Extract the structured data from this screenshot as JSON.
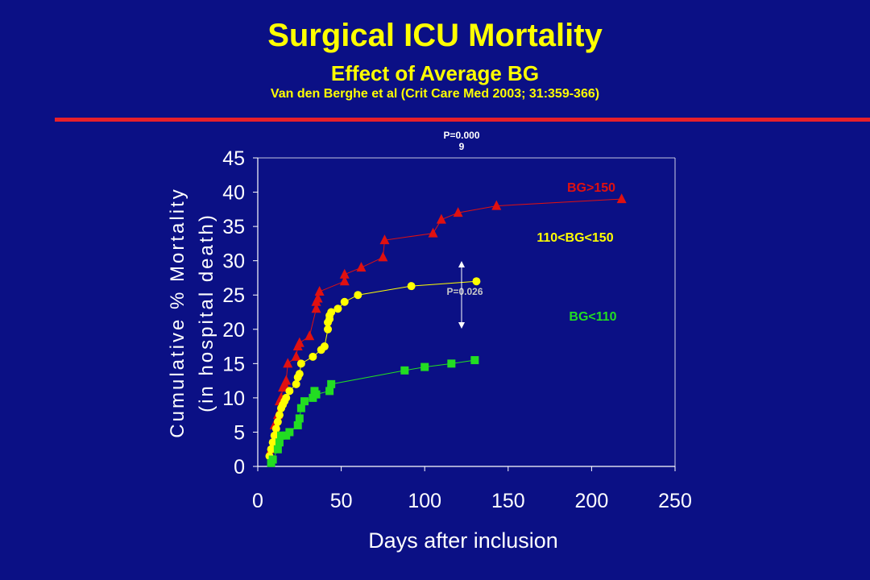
{
  "title": "Surgical ICU Mortality",
  "subtitle": "Effect of Average BG",
  "citation": "Van den Berghe et al (Crit Care Med 2003; 31:359-366)",
  "colors": {
    "background": "#0b1085",
    "title": "#ffff00",
    "rule": "#e8202a",
    "bg_high": "#e01010",
    "bg_mid": "#ffff00",
    "bg_low": "#22dd22"
  },
  "chart_data": {
    "type": "line",
    "xlabel": "Days after inclusion",
    "ylabel_line1": "Cumulative % Mortality",
    "ylabel_line2": "(in hospital death)",
    "xlim": [
      0,
      250
    ],
    "ylim": [
      0,
      45
    ],
    "xticks": [
      0,
      50,
      100,
      150,
      200,
      250
    ],
    "yticks": [
      0,
      5,
      10,
      15,
      20,
      25,
      30,
      35,
      40,
      45
    ],
    "grid": false,
    "annotations": {
      "p_top_line1": "P=0.000",
      "p_top_line2": "9",
      "p_mid": "P=0.026"
    },
    "series": [
      {
        "name": "BG>150",
        "marker": "triangle",
        "x": [
          8,
          9,
          10,
          11,
          12,
          13,
          14,
          15,
          16,
          17,
          18,
          23,
          24,
          25,
          31,
          35,
          35,
          36,
          37,
          52,
          52,
          62,
          75,
          76,
          105,
          110,
          120,
          143,
          218
        ],
        "y": [
          2.5,
          3,
          6,
          5,
          7.5,
          9.5,
          10,
          11.5,
          12,
          12.5,
          15,
          16,
          17.5,
          18,
          19,
          23,
          24,
          24.5,
          25.5,
          27,
          28,
          29,
          30.5,
          33,
          34,
          36,
          37,
          38,
          39
        ]
      },
      {
        "name": "110<BG<150",
        "marker": "circle",
        "x": [
          7,
          8,
          9,
          10,
          11,
          12,
          13,
          14,
          15,
          16,
          17,
          19,
          23,
          24,
          25,
          26,
          33,
          38,
          40,
          42,
          42,
          43,
          43,
          44,
          48,
          52,
          60,
          92,
          131
        ],
        "y": [
          1.5,
          2.5,
          3.5,
          4.5,
          5.5,
          6.5,
          7.5,
          8.5,
          9,
          9.5,
          10,
          11,
          12,
          13,
          13.5,
          15,
          16,
          17,
          17.5,
          20,
          21,
          21.5,
          22,
          22.5,
          23,
          24,
          25,
          26.3,
          27
        ]
      },
      {
        "name": "BG<110",
        "marker": "square",
        "x": [
          8,
          9,
          12,
          13,
          14,
          17,
          19,
          24,
          25,
          26,
          28,
          33,
          34,
          35,
          43,
          44,
          88,
          100,
          116,
          130
        ],
        "y": [
          0.5,
          1,
          2.5,
          3.5,
          4.5,
          4.5,
          5,
          6,
          7,
          8.5,
          9.5,
          10,
          11,
          10.5,
          11,
          12,
          14,
          14.5,
          15,
          15.5
        ]
      }
    ]
  }
}
